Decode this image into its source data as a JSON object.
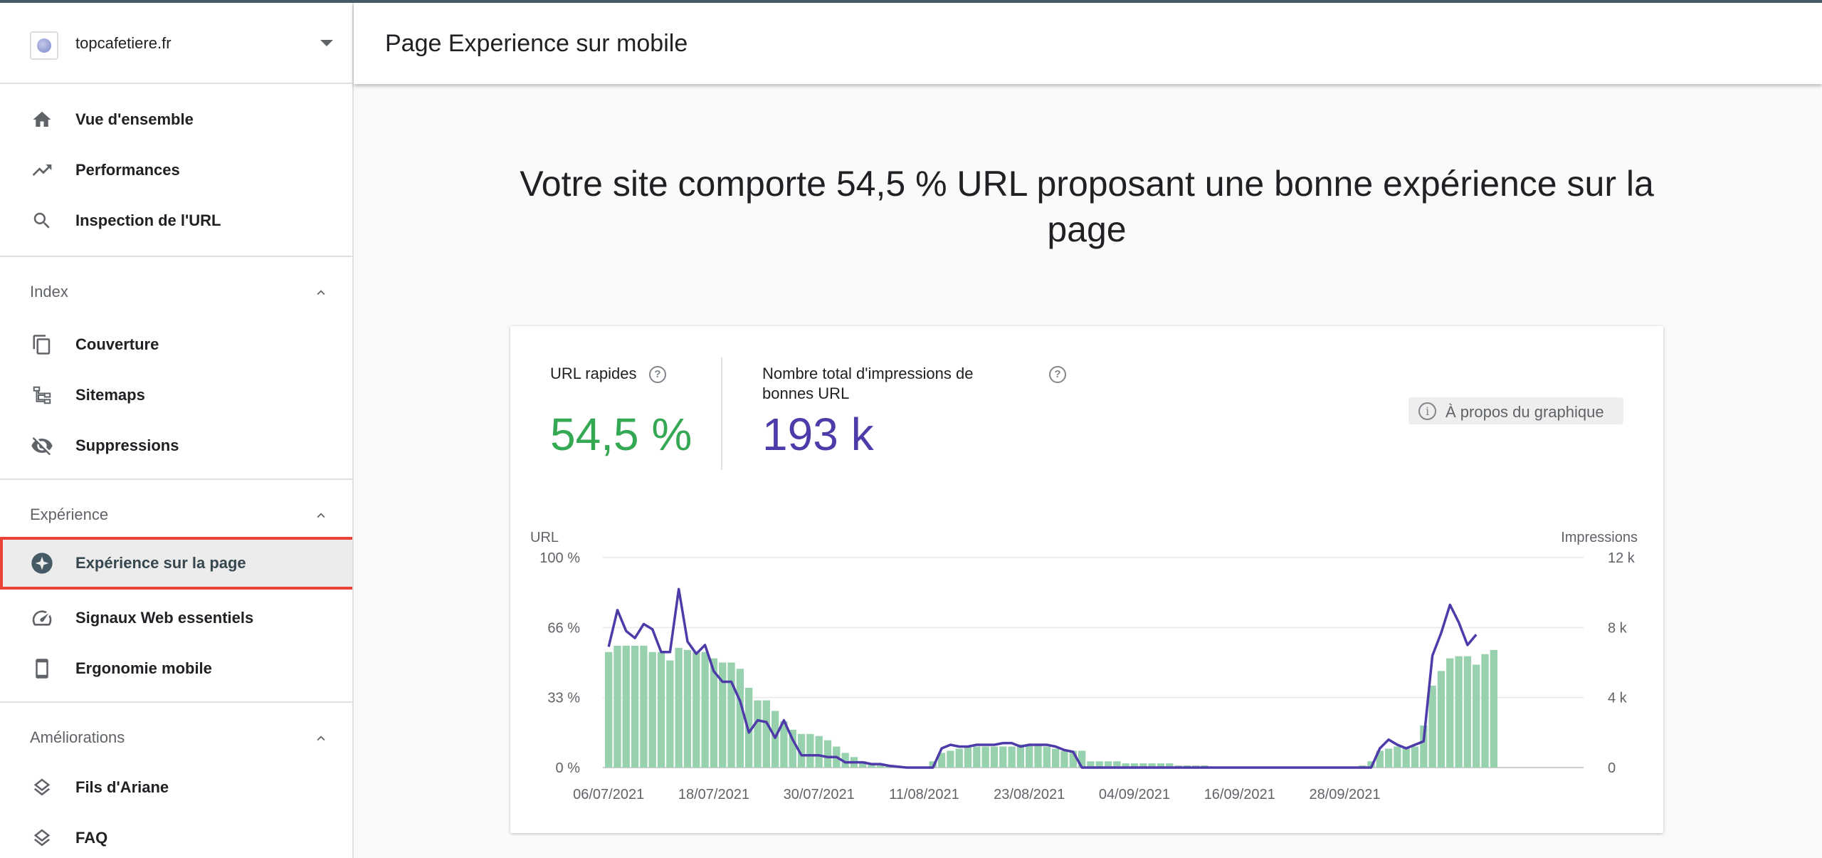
{
  "property": {
    "name": "topcafetiere.fr"
  },
  "nav": {
    "top": [
      {
        "label": "Vue d'ensemble",
        "icon": "home-icon"
      },
      {
        "label": "Performances",
        "icon": "trending-up-icon"
      },
      {
        "label": "Inspection de l'URL",
        "icon": "search-icon"
      }
    ],
    "sections": [
      {
        "title": "Index",
        "items": [
          {
            "label": "Couverture",
            "icon": "copy-pages-icon"
          },
          {
            "label": "Sitemaps",
            "icon": "sitemap-icon"
          },
          {
            "label": "Suppressions",
            "icon": "visibility-off-icon"
          }
        ]
      },
      {
        "title": "Expérience",
        "items": [
          {
            "label": "Expérience sur la page",
            "icon": "page-experience-icon",
            "active": true
          },
          {
            "label": "Signaux Web essentiels",
            "icon": "speed-gauge-icon"
          },
          {
            "label": "Ergonomie mobile",
            "icon": "smartphone-icon"
          }
        ]
      },
      {
        "title": "Améliorations",
        "items": [
          {
            "label": "Fils d'Ariane",
            "icon": "layers-icon"
          },
          {
            "label": "FAQ",
            "icon": "layers-icon"
          }
        ]
      }
    ]
  },
  "header": {
    "title": "Page Experience sur mobile"
  },
  "headline": "Votre site comporte 54,5 % URL proposant une bonne expérience sur la page",
  "metrics": {
    "fast_urls": {
      "label": "URL rapides",
      "value": "54,5 %",
      "color": "#34a853"
    },
    "impressions": {
      "label": "Nombre total d'impressions de bonnes URL",
      "value": "193 k",
      "color": "#4e3aa8"
    },
    "help_glyph": "?"
  },
  "about_chart": {
    "label": "À propos du graphique",
    "icon": "info-icon",
    "glyph": "i"
  },
  "chart_data": {
    "type": "bar",
    "left_axis_label": "URL",
    "right_axis_label": "Impressions",
    "left_ticks": [
      "0 %",
      "33 %",
      "66 %",
      "100 %"
    ],
    "right_ticks": [
      "0",
      "4 k",
      "8 k",
      "12 k"
    ],
    "ylim_left": [
      0,
      100
    ],
    "ylim_right": [
      0,
      12000
    ],
    "x_tick_labels": [
      "06/07/2021",
      "18/07/2021",
      "30/07/2021",
      "11/08/2021",
      "23/08/2021",
      "04/09/2021",
      "16/09/2021",
      "28/09/2021"
    ],
    "grid": true,
    "bar_color": "#97d1ad",
    "line_color": "#4e3aa8",
    "series": [
      {
        "type": "bar",
        "axis": "left",
        "values": [
          55,
          58,
          58,
          58,
          58,
          55,
          55,
          51,
          57,
          56,
          55,
          55,
          52,
          50,
          50,
          47,
          38,
          32,
          32,
          27,
          22,
          18,
          16,
          16,
          15,
          13,
          10,
          7,
          5,
          3,
          2,
          1,
          1,
          0,
          0,
          0,
          0,
          3,
          7,
          8,
          9,
          10,
          10,
          10,
          10,
          10,
          10,
          11,
          11,
          11,
          10,
          9,
          8,
          8,
          8,
          3,
          3,
          3,
          3,
          2,
          2,
          2,
          2,
          2,
          2,
          1,
          1,
          1,
          1,
          0,
          0,
          0,
          0,
          0,
          0,
          0,
          0,
          0,
          0,
          0,
          0,
          0,
          0,
          0,
          0,
          0,
          1,
          3,
          8,
          9,
          10,
          10,
          10,
          20,
          39,
          46,
          52,
          53,
          53,
          49,
          54,
          56
        ]
      },
      {
        "type": "line",
        "axis": "right",
        "values": [
          6900,
          9000,
          7800,
          7400,
          8200,
          7900,
          6600,
          6600,
          10200,
          7200,
          6500,
          7000,
          5500,
          4900,
          4900,
          3800,
          2000,
          2700,
          2600,
          1700,
          2700,
          1600,
          700,
          700,
          700,
          600,
          600,
          300,
          300,
          300,
          200,
          200,
          100,
          50,
          0,
          0,
          0,
          0,
          1100,
          1300,
          1200,
          1200,
          1300,
          1300,
          1300,
          1400,
          1400,
          1200,
          1300,
          1300,
          1300,
          1200,
          1000,
          900,
          0,
          0,
          0,
          0,
          0,
          0,
          0,
          0,
          0,
          0,
          0,
          0,
          0,
          0,
          0,
          0,
          0,
          0,
          0,
          0,
          0,
          0,
          0,
          0,
          0,
          0,
          0,
          0,
          0,
          0,
          0,
          0,
          0,
          0,
          1100,
          1600,
          1300,
          1100,
          1300,
          1500,
          6400,
          7700,
          9300,
          8300,
          7000,
          7600
        ]
      }
    ]
  }
}
